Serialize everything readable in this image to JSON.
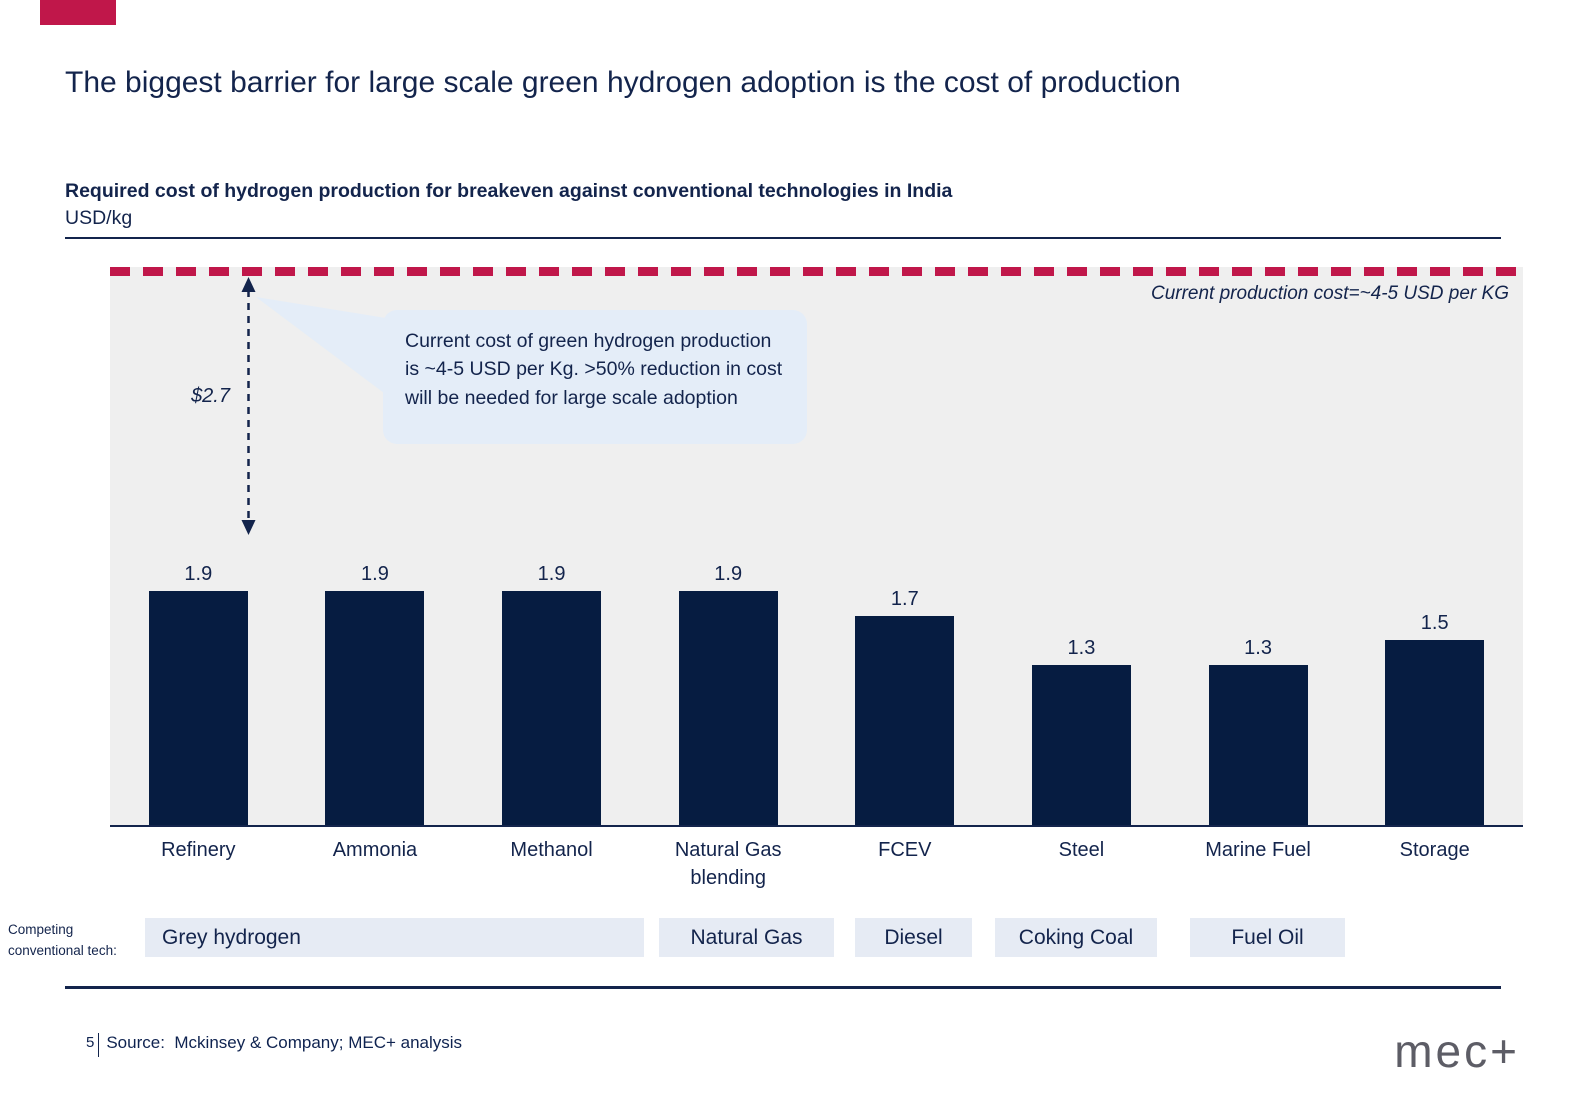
{
  "slide": {
    "title": "The biggest barrier for large scale green hydrogen adoption is the cost of production",
    "accent_color": "#c0174a"
  },
  "chart": {
    "heading": "Required cost of hydrogen production for breakeven against conventional technologies in India",
    "unit_label": "USD/kg",
    "reference_note": "Current production cost=~4-5 USD per KG",
    "gap_label": "$2.7",
    "callout_text": "Current cost of green hydrogen production is ~4-5 USD per Kg. >50% reduction in cost will be needed for large scale adoption"
  },
  "chart_data": {
    "type": "bar",
    "title": "Required cost of hydrogen production for breakeven against conventional technologies in India",
    "xlabel": "",
    "ylabel": "USD/kg",
    "categories": [
      "Refinery",
      "Ammonia",
      "Methanol",
      "Natural Gas blending",
      "FCEV",
      "Steel",
      "Marine Fuel",
      "Storage"
    ],
    "values": [
      1.9,
      1.9,
      1.9,
      1.9,
      1.7,
      1.3,
      1.3,
      1.5
    ],
    "ylim": [
      0,
      4.55
    ],
    "grid": false,
    "bar_color": "#061c41",
    "plot_background": "#efefef",
    "reference_line": {
      "value": 4.5,
      "style": "dashed",
      "color": "#c0174a",
      "label": "Current production cost=~4-5 USD per KG"
    },
    "annotations": [
      {
        "text": "$2.7",
        "meaning": "gap between current production cost line and 1.9 breakeven bar"
      },
      {
        "text": "Current cost of green hydrogen production is ~4-5 USD per Kg. >50% reduction in cost will be needed for large scale adoption"
      }
    ]
  },
  "competing_tech": {
    "label_line1": "Competing",
    "label_line2": "conventional tech:",
    "items": [
      {
        "label": "Grey hydrogen",
        "applies_to": [
          "Refinery",
          "Ammonia",
          "Methanol",
          "Natural Gas blending"
        ]
      },
      {
        "label": "Natural Gas",
        "applies_to": [
          "Natural Gas blending",
          "FCEV"
        ]
      },
      {
        "label": "Diesel",
        "applies_to": [
          "FCEV"
        ]
      },
      {
        "label": "Coking Coal",
        "applies_to": [
          "Steel"
        ]
      },
      {
        "label": "Fuel Oil",
        "applies_to": [
          "Marine Fuel"
        ]
      }
    ]
  },
  "footer": {
    "page_number": "5",
    "source": "Source:  Mckinsey & Company; MEC+ analysis",
    "logo_text": "mec+"
  }
}
